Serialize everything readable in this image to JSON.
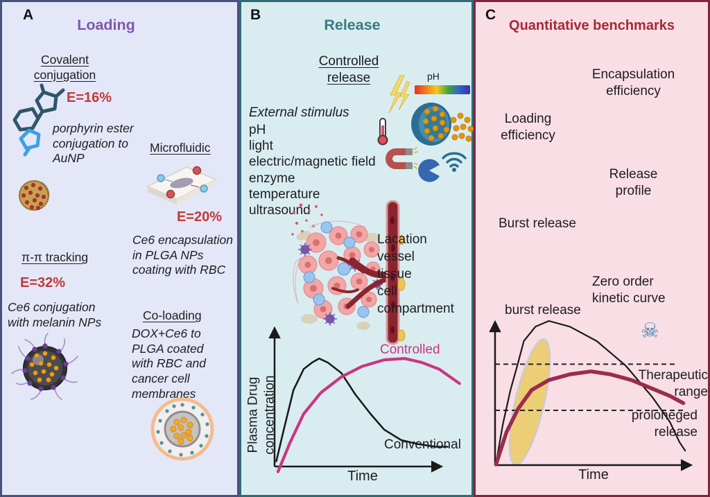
{
  "figure": {
    "type": "three-panel scientific illustration",
    "accents": {
      "panelA_title": "#7e57ae",
      "panelB_title": "#3b7a80",
      "panelC_title": "#a52838",
      "efficiency_red": "#bf3a38",
      "panelA_bg": "#e4e7f8",
      "panelB_bg": "#d9edf1",
      "panelC_bg": "#f9dee5",
      "panelA_border": "#47527f",
      "panelB_border": "#2f6b74",
      "panelC_border": "#7e2540"
    }
  },
  "panelA": {
    "label": "A",
    "title": "Loading",
    "covalent_heading": "Covalent \nconjugation",
    "covalent_eff": "E=16%",
    "covalent_caption": "porphyrin ester\nconjugation to\nAuNP",
    "microfluidic_heading": "Microfluidic",
    "microfluidic_eff": "E=20%",
    "microfluidic_caption": "Ce6 encapsulation\nin  PLGA NPs\ncoating with RBC",
    "pipi_heading": "π-π tracking",
    "pipi_eff": "E=32%",
    "pipi_caption": "Ce6 conjugation\nwith melanin NPs",
    "coloading_heading": "Co-loading ",
    "coloading_caption": "DOX+Ce6 to\nPLGA coated\nwith RBC and\ncancer cell\nmembranes"
  },
  "panelB": {
    "label": "B",
    "title": "Release",
    "heading": "Controlled \nrelease",
    "stimulus_title": "External stimulus",
    "stimulus_list": "pH\nlight\nelectric/magnetic field\nenzyme\ntemperature\nultrasound",
    "ph_label": "pH",
    "vessel_caption": "Lacation\nvessel\ntissue\ncell\ncompartment",
    "graph_labels": {
      "ylabel": "Plasma Drug\nconcentration",
      "xlabel": "Time",
      "controlled": "Controlled",
      "conventional": "Conventional"
    }
  },
  "panelC": {
    "label": "C",
    "title": "Quantitative benchmarks",
    "item_encapsulation": "Encapsulation\nefficiency",
    "item_loading": "Loading\nefficiency",
    "item_release": "Release\nprofile",
    "item_burst": "Burst release",
    "item_zero_order": "Zero order\nkinetic curve",
    "graph_labels": {
      "burst": "burst release",
      "therapeutic": "Therapeutic\nrange",
      "prolonged": "proloneged\nrelease",
      "xlabel": "Time"
    }
  },
  "icons": {
    "skull_glyph": "☠"
  },
  "chart_data": [
    {
      "type": "line",
      "title": "Controlled vs conventional drug release",
      "xlabel": "Time",
      "ylabel": "Plasma Drug concentration",
      "xlim": [
        0,
        10
      ],
      "ylim": [
        0,
        10
      ],
      "ticks": "none",
      "grid": false,
      "legend": "inline labels",
      "series": [
        {
          "name": "Conventional",
          "color": "#1a1a1a",
          "points": [
            [
              0.1,
              0.4
            ],
            [
              0.5,
              2.6
            ],
            [
              1.1,
              5.8
            ],
            [
              1.7,
              7.4
            ],
            [
              2.2,
              7.9
            ],
            [
              2.6,
              8.2
            ],
            [
              3.1,
              7.9
            ],
            [
              3.9,
              7.1
            ],
            [
              4.7,
              5.5
            ],
            [
              5.6,
              4.0
            ],
            [
              6.4,
              2.8
            ],
            [
              7.4,
              2.0
            ],
            [
              8.4,
              1.7
            ],
            [
              9.4,
              1.5
            ],
            [
              10.1,
              1.5
            ]
          ]
        },
        {
          "name": "Controlled",
          "color": "#cb3581",
          "points": [
            [
              0.2,
              -0.4
            ],
            [
              0.9,
              1.8
            ],
            [
              1.7,
              4.0
            ],
            [
              2.7,
              5.6
            ],
            [
              3.9,
              6.8
            ],
            [
              5.1,
              7.6
            ],
            [
              6.4,
              8.1
            ],
            [
              7.6,
              8.2
            ],
            [
              8.6,
              7.9
            ],
            [
              9.6,
              7.4
            ],
            [
              10.8,
              6.3
            ]
          ]
        }
      ]
    },
    {
      "type": "line",
      "title": "Burst vs prolonged release with therapeutic range",
      "xlabel": "Time",
      "ylabel": "",
      "xlim": [
        0,
        10
      ],
      "ylim": [
        0,
        10
      ],
      "ticks": "none",
      "grid": false,
      "legend": "inline labels",
      "series": [
        {
          "name": "burst release",
          "color": "#1a1a1a",
          "points": [
            [
              0.05,
              0.1
            ],
            [
              0.4,
              2.8
            ],
            [
              0.8,
              5.2
            ],
            [
              1.2,
              7.1
            ],
            [
              1.5,
              8.6
            ],
            [
              2.1,
              9.6
            ],
            [
              2.8,
              10.0
            ],
            [
              3.9,
              9.6
            ],
            [
              5.3,
              8.6
            ],
            [
              6.8,
              6.9
            ],
            [
              8.2,
              4.7
            ],
            [
              9.1,
              3.0
            ],
            [
              9.6,
              1.6
            ],
            [
              9.9,
              1.0
            ]
          ]
        },
        {
          "name": "proloneged release",
          "color": "#9b2c4e",
          "points": [
            [
              0.05,
              0.05
            ],
            [
              0.6,
              2.3
            ],
            [
              1.2,
              3.9
            ],
            [
              1.9,
              5.2
            ],
            [
              2.8,
              5.9
            ],
            [
              3.9,
              6.3
            ],
            [
              5.0,
              6.5
            ],
            [
              6.0,
              6.3
            ],
            [
              7.1,
              5.9
            ],
            [
              8.2,
              5.3
            ],
            [
              9.1,
              4.8
            ],
            [
              9.8,
              4.3
            ]
          ]
        }
      ],
      "therapeutic_range": {
        "upper": 7.0,
        "lower": 3.8
      }
    }
  ]
}
